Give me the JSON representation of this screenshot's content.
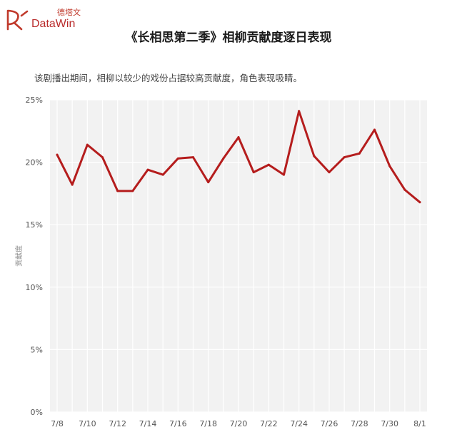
{
  "header": {
    "logo_cn": "德塔文",
    "logo_en": "DataWin",
    "title": "《长相思第二季》相柳贡献度逐日表现",
    "subtitle": "该剧播出期间，相柳以较少的戏份占据较高贡献度，角色表现吸睛。"
  },
  "colors": {
    "line": "#b51d1d",
    "plot_bg": "#f2f2f2",
    "grid": "#ffffff",
    "brand": "#c0392b"
  },
  "chart_data": {
    "type": "line",
    "title": "《长相思第二季》相柳贡献度逐日表现",
    "xlabel": "",
    "ylabel": "贡献度",
    "x": [
      "7/8",
      "7/9",
      "7/10",
      "7/11",
      "7/12",
      "7/13",
      "7/14",
      "7/15",
      "7/16",
      "7/17",
      "7/18",
      "7/19",
      "7/20",
      "7/21",
      "7/22",
      "7/23",
      "7/24",
      "7/25",
      "7/26",
      "7/27",
      "7/28",
      "7/29",
      "7/30",
      "7/31",
      "8/1"
    ],
    "x_tick_labels": [
      "7/8",
      "7/10",
      "7/12",
      "7/14",
      "7/16",
      "7/18",
      "7/20",
      "7/22",
      "7/24",
      "7/26",
      "7/28",
      "7/30",
      "8/1"
    ],
    "series": [
      {
        "values": [
          20.6,
          18.2,
          21.4,
          20.4,
          17.7,
          17.7,
          19.4,
          19.0,
          20.3,
          20.4,
          18.4,
          20.3,
          22.0,
          19.2,
          19.8,
          19.0,
          24.1,
          20.5,
          19.2,
          20.4,
          20.7,
          22.6,
          19.7,
          17.8,
          16.8
        ]
      }
    ],
    "ylim": [
      0,
      25
    ],
    "y_ticks": [
      0,
      5,
      10,
      15,
      20,
      25
    ],
    "y_tick_labels": [
      "0%",
      "5%",
      "10%",
      "15%",
      "20%",
      "25%"
    ],
    "grid": true,
    "legend": "none"
  }
}
